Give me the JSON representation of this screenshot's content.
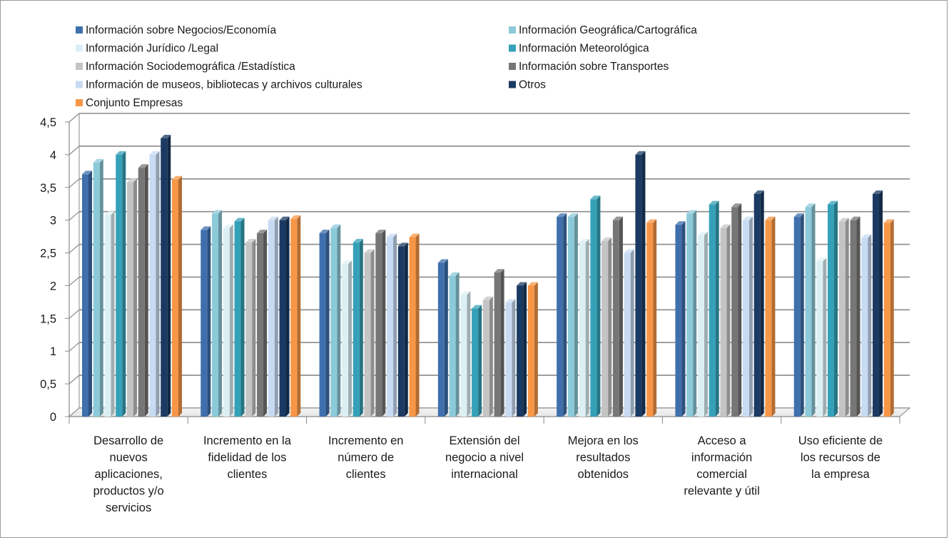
{
  "chart_data": {
    "type": "bar",
    "title": "",
    "xlabel": "",
    "ylabel": "",
    "ylim": [
      0,
      4.5
    ],
    "y_ticks": [
      "0",
      "0,5",
      "1",
      "1,5",
      "2",
      "2,5",
      "3",
      "3,5",
      "4",
      "4,5"
    ],
    "grid": true,
    "legend_position": "top",
    "categories": [
      [
        "Desarrollo de",
        "nuevos",
        "aplicaciones,",
        "productos  y/o",
        "servicios"
      ],
      [
        "Incremento en la",
        "fidelidad de los",
        "clientes"
      ],
      [
        "Incremento en",
        "número de",
        "clientes"
      ],
      [
        "Extensión del",
        "negocio a nivel",
        "internacional"
      ],
      [
        "Mejora en los",
        "resultados",
        "obtenidos"
      ],
      [
        "Acceso a",
        "información",
        "comercial",
        "relevante y útil"
      ],
      [
        "Uso eficiente de",
        "los recursos de",
        "la empresa"
      ]
    ],
    "series": [
      {
        "name": "Información sobre Negocios/Economía",
        "color": "#3f6fac",
        "values": [
          3.7,
          2.85,
          2.8,
          2.35,
          3.05,
          2.93,
          3.05
        ]
      },
      {
        "name": "Información Geográfica/Cartográfica",
        "color": "#8ccad9",
        "values": [
          3.88,
          3.1,
          2.88,
          2.15,
          3.05,
          3.1,
          3.2
        ]
      },
      {
        "name": "Información Jurídico /Legal",
        "color": "#dcf0f4",
        "values": [
          3.08,
          2.88,
          2.33,
          1.86,
          2.66,
          2.77,
          2.37
        ]
      },
      {
        "name": "Información Meteorológica",
        "color": "#35a1b8",
        "values": [
          4.0,
          2.98,
          2.66,
          1.65,
          3.32,
          3.24,
          3.24
        ]
      },
      {
        "name": "Información Sociodemográfica /Estadística",
        "color": "#c4c4c4",
        "values": [
          3.58,
          2.66,
          2.5,
          1.78,
          2.68,
          2.88,
          2.98
        ]
      },
      {
        "name": "Información sobre Transportes",
        "color": "#767676",
        "values": [
          3.8,
          2.8,
          2.8,
          2.2,
          3.0,
          3.2,
          3.0
        ]
      },
      {
        "name": "Información de museos, bibliotecas y archivos culturales",
        "color": "#c8dbf3",
        "values": [
          4.0,
          3.0,
          2.74,
          1.74,
          2.5,
          3.0,
          2.73
        ]
      },
      {
        "name": "Otros",
        "color": "#1b3a63",
        "values": [
          4.25,
          3.0,
          2.6,
          2.0,
          4.0,
          3.4,
          3.4
        ]
      },
      {
        "name": "Conjunto Empresas",
        "color": "#f79646",
        "values": [
          3.62,
          3.02,
          2.74,
          2.0,
          2.96,
          3.0,
          2.96
        ]
      }
    ]
  }
}
